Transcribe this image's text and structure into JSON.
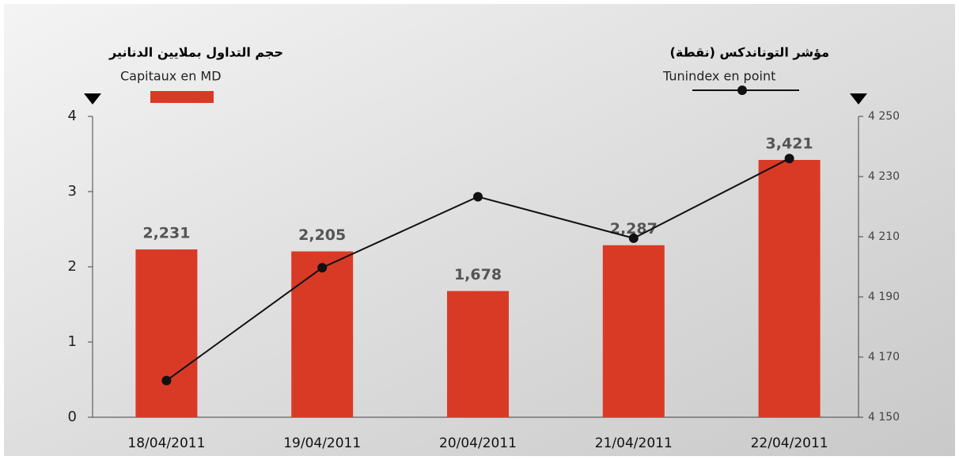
{
  "chart_data": {
    "type": "bar-line",
    "categories": [
      "18/04/2011",
      "19/04/2011",
      "20/04/2011",
      "21/04/2011",
      "22/04/2011"
    ],
    "series": [
      {
        "type": "bar",
        "name": "Capitaux en MD",
        "title": "حجم التداول بملايين الدنانير",
        "color": "#d93a26",
        "values": [
          2.231,
          2.205,
          1.678,
          2.287,
          3.421
        ],
        "value_labels": [
          "2,231",
          "2,205",
          "1,678",
          "2,287",
          "3,421"
        ]
      },
      {
        "type": "line",
        "name": "Tunindex en point",
        "title": "مؤشر التوناندكس (نقطة)",
        "color": "#111111",
        "axis": "y2",
        "values": [
          4162.2,
          4199.7,
          4223.3,
          4209.5,
          4236.0
        ]
      }
    ],
    "ylim": [
      0,
      4
    ],
    "yticks": [
      0,
      1,
      2,
      3,
      4
    ],
    "y2lim": [
      4150,
      4250
    ],
    "y2ticks": [
      {
        "value": 4150,
        "label": "4 150"
      },
      {
        "value": 4170,
        "label": "4 170"
      },
      {
        "value": 4190,
        "label": "4 190"
      },
      {
        "value": 4210,
        "label": "4 210"
      },
      {
        "value": 4230,
        "label": "4 230"
      },
      {
        "value": 4250,
        "label": "4 250"
      }
    ]
  }
}
